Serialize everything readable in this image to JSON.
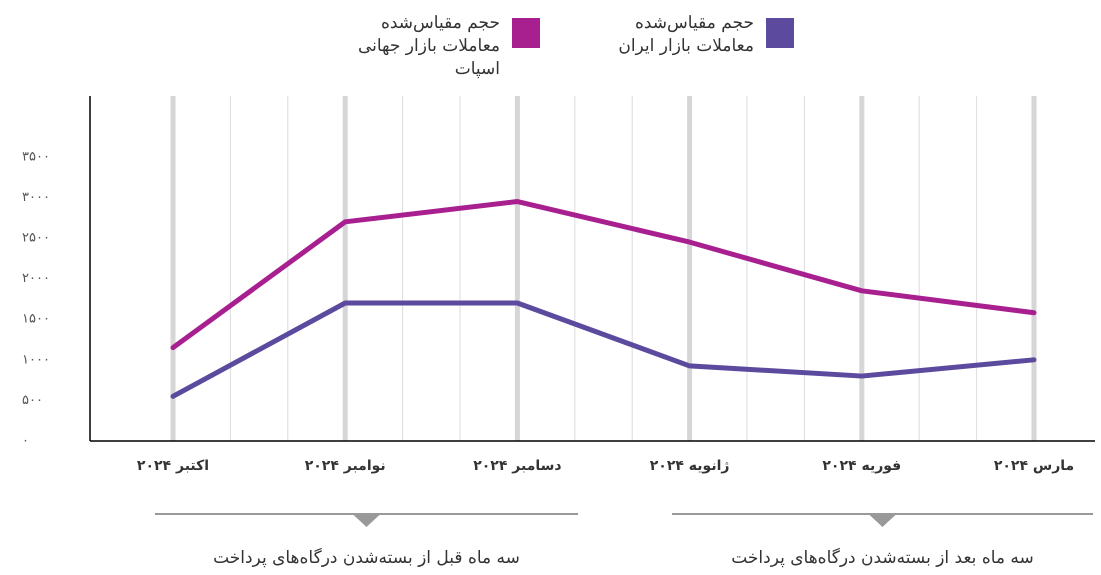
{
  "chart_data": {
    "type": "line",
    "categories": [
      "اکتبر ۲۰۲۴",
      "نوامبر ۲۰۲۴",
      "دسامبر ۲۰۲۴",
      "ژانویه ۲۰۲۴",
      "فوریه ۲۰۲۴",
      "مارس ۲۰۲۴"
    ],
    "series": [
      {
        "name": "حجم مقیاس‌شده معاملات بازار ایران",
        "color": "#5b4a9e",
        "values": [
          550,
          1700,
          1700,
          925,
          800,
          1000
        ]
      },
      {
        "name": "حجم مقیاس‌شده معاملات بازار جهانی اسپات",
        "color": "#a8208f",
        "values": [
          1150,
          2700,
          2950,
          2450,
          1850,
          1580
        ]
      }
    ],
    "ylim": [
      0,
      4250
    ],
    "yticks": [
      {
        "value": 0,
        "label": "۰"
      },
      {
        "value": 500,
        "label": "۵۰۰"
      },
      {
        "value": 1000,
        "label": "۱۰۰۰"
      },
      {
        "value": 1500,
        "label": "۱۵۰۰"
      },
      {
        "value": 2000,
        "label": "۲۰۰۰"
      },
      {
        "value": 2500,
        "label": "۲۵۰۰"
      },
      {
        "value": 3000,
        "label": "۳۰۰۰"
      },
      {
        "value": 3500,
        "label": "۳۵۰۰"
      }
    ],
    "grid": true,
    "annotations": [
      "سه ماه قبل از بسته‌شدن درگاه‌های پرداخت",
      "سه ماه بعد از بسته‌شدن درگاه‌های پرداخت"
    ]
  }
}
